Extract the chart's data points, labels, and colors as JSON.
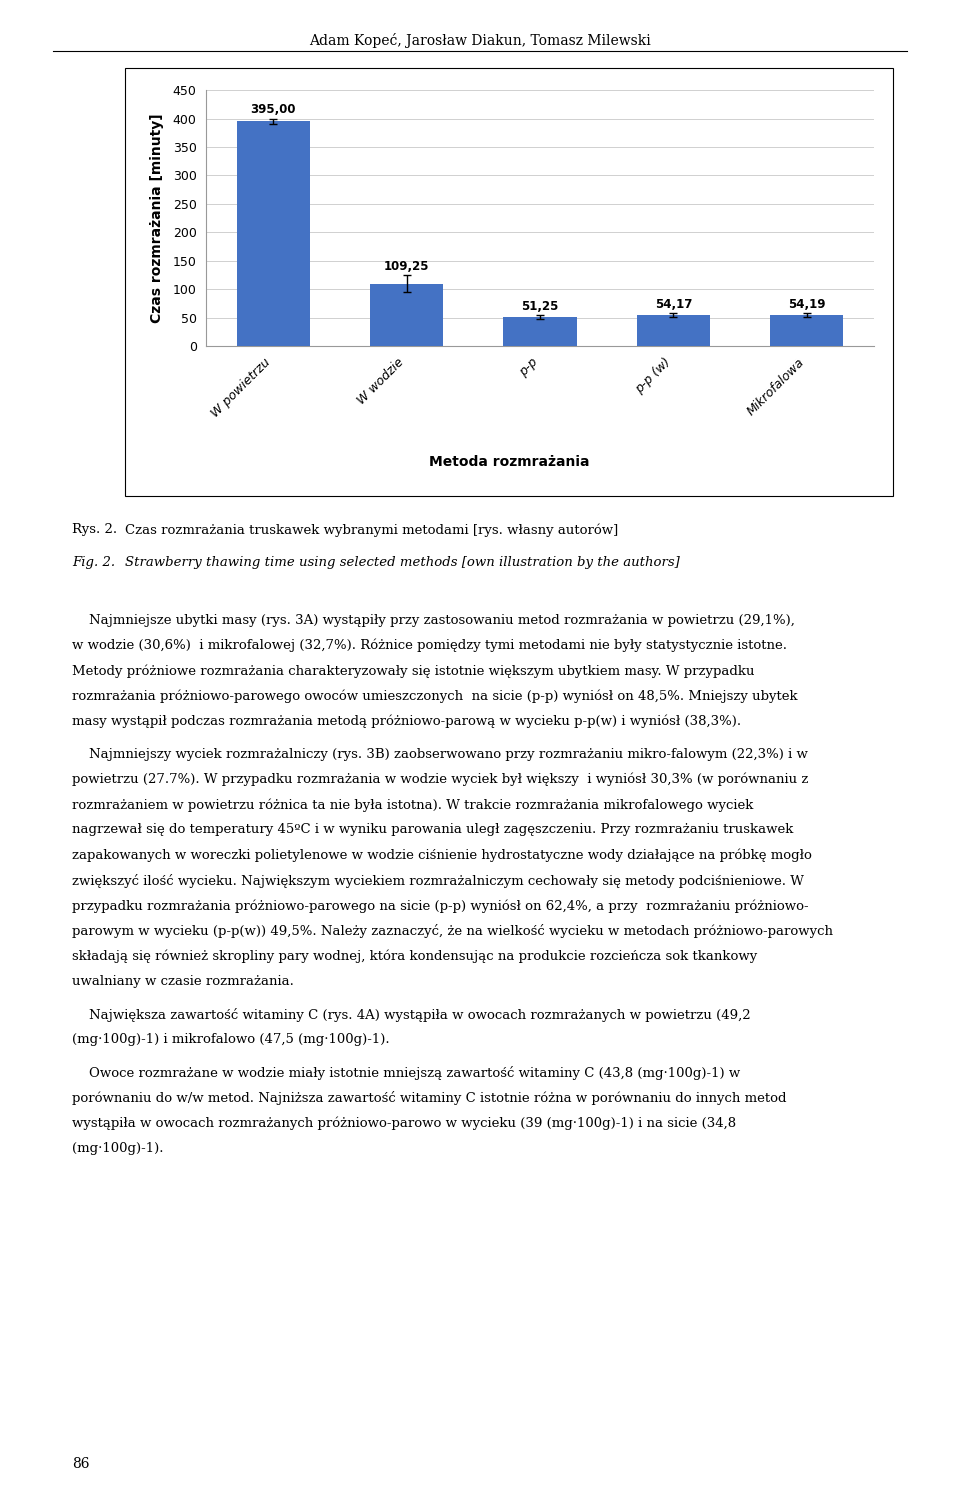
{
  "categories": [
    "W powietrzu",
    "W wodzie",
    "p-p",
    "p-p (w)",
    "Mikrofalowa"
  ],
  "values": [
    395.0,
    109.25,
    51.25,
    54.17,
    54.19
  ],
  "errors": [
    5.0,
    15.0,
    3.5,
    3.5,
    3.5
  ],
  "bar_color": "#4472C4",
  "ylabel": "Czas rozmrażania [minuty]",
  "xlabel": "Metoda rozmrażania",
  "ylim": [
    0,
    450
  ],
  "yticks": [
    0,
    50,
    100,
    150,
    200,
    250,
    300,
    350,
    400,
    450
  ],
  "value_labels": [
    "395,00",
    "109,25",
    "51,25",
    "54,17",
    "54,19"
  ],
  "header": "Adam Kopeć, Jarosław Diakun, Tomasz Milewski",
  "caption_pl_prefix": "Rys. 2.",
  "caption_pl_text": "Czas rozmrażania truskawek wybranymi metodami [rys. własny autorów]",
  "caption_en_prefix": "Fig. 2.",
  "caption_en_text": "Strawberry thawing time using selected methods [own illustration by the authors]",
  "body_paragraphs": [
    "    Najmniejsze ubytki masy (rys. 3A) wystąpiły przy zastosowaniu metod rozmrażania w powietrzu (29,1%), w wodzie (30,6%)  i mikrofalowej (32,7%). Różnice pomiędzy tymi metodami nie były statystycznie istotne. Metody próżniowe rozmrażania charakteryzowały się istotnie większym ubytkiem masy. W przypadku rozmrażania próżniowo-parowego owoców umieszczonych  na sicie (p-p) wyniósł on 48,5%. Mniejszy ubytek masy wystąpił podczas rozmrażania metodą próżniowo-parową w wycieku p-p(w) i wyniósł (38,3%).",
    "    Najmniejszy wyciek rozmrażalniczy (rys. 3B) zaobserwowano przy rozmrażaniu mikro-falowym (22,3%) i w powietrzu (27.7%). W przypadku rozmrażania w wodzie wyciek był większy  i wyniósł 30,3% (w porównaniu z rozmrażaniem w powietrzu różnica ta nie była istotna). W trakcie rozmrażania mikrofalowego wyciek nagrzewał się do temperatury 45ºC i w wyniku parowania uległ zagęszczeniu. Przy rozmrażaniu truskawek zapakowanych w woreczki polietylenowe w wodzie ciśnienie hydrostatyczne wody działające na próbkę mogło zwiększyć ilość wycieku. Największym wyciekiem rozmrażalniczym cechowały się metody podciśnieniowe. W przypadku rozmrażania próżniowo-parowego na sicie (p-p) wyniósł on 62,4%, a przy  rozmrażaniu próżniowo-parowym w wycieku (p-p(w)) 49,5%. Należy zaznaczyć, że na wielkość wycieku w metodach próżniowo-parowych składają się również skropliny pary wodnej, która kondensując na produkcie rozcieńcza sok tkankowy uwalniany w czasie rozmrażania.",
    "    Największa zawartość witaminy C (rys. 4A) wystąpiła w owocach rozmrażanych w powietrzu (49,2 (mg·100g)-1) i mikrofalowo (47,5 (mg·100g)-1).",
    "    Owoce rozmrażane w wodzie miały istotnie mniejszą zawartość witaminy C (43,8 (mg·100g)-1) w porównaniu do w/w metod. Najniższa zawartość witaminy C istotnie różna w porównaniu do innych metod wystąpiła w owocach rozmrażanych próżniowo-parowo w wycieku (39 (mg·100g)-1) i na sicie (34,8 (mg·100g)-1)."
  ],
  "page_number": "86"
}
